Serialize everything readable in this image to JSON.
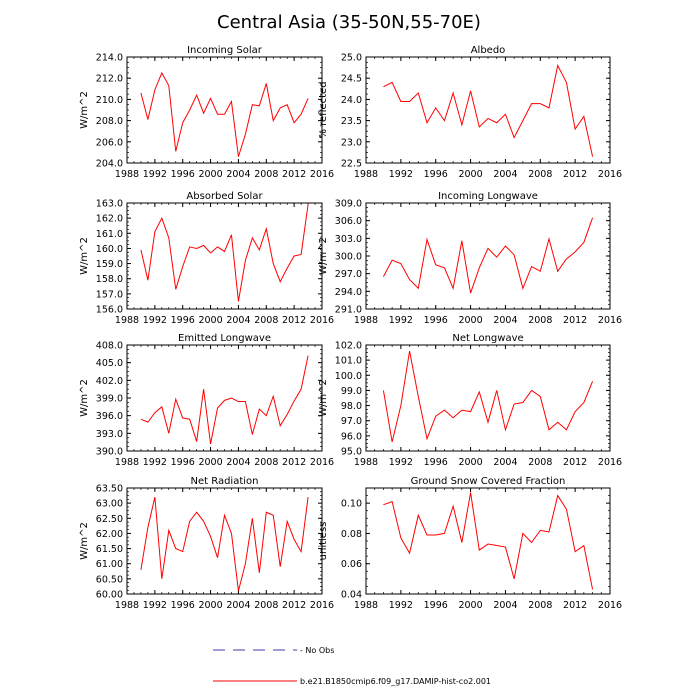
{
  "figure_title": "Central Asia (35-50N,55-70E)",
  "legend": {
    "obs_label": "- No Obs",
    "obs_color": "#3b3ba8",
    "model_label": "b.e21.B1850cmip6.f09_g17.DAMIP-hist-co2.001",
    "model_color": "#ff0000"
  },
  "chart_data": [
    {
      "type": "line",
      "title": "Incoming Solar",
      "ylabel": "W/m^2",
      "xlim": [
        1988,
        2016
      ],
      "xticks": [
        "1988",
        "1992",
        "1996",
        "2000",
        "2004",
        "2008",
        "2012",
        "2016"
      ],
      "ylim": [
        204.0,
        214.0
      ],
      "yticks": [
        "204.0",
        "206.0",
        "208.0",
        "210.0",
        "212.0",
        "214.0"
      ],
      "x": [
        1990,
        1991,
        1992,
        1993,
        1994,
        1995,
        1996,
        1997,
        1998,
        1999,
        2000,
        2001,
        2002,
        2003,
        2004,
        2005,
        2006,
        2007,
        2008,
        2009,
        2010,
        2011,
        2012,
        2013,
        2014
      ],
      "series": [
        {
          "values": [
            210.6,
            208.1,
            210.9,
            212.5,
            211.3,
            205.1,
            207.8,
            209.0,
            210.4,
            208.7,
            210.1,
            208.6,
            208.6,
            209.8,
            204.6,
            206.7,
            209.5,
            209.4,
            211.5,
            208.0,
            209.2,
            209.5,
            207.8,
            208.6,
            210.1
          ]
        }
      ]
    },
    {
      "type": "line",
      "title": "Albedo",
      "ylabel": "% reflected",
      "xlim": [
        1988,
        2016
      ],
      "xticks": [
        "1988",
        "1992",
        "1996",
        "2000",
        "2004",
        "2008",
        "2012",
        "2016"
      ],
      "ylim": [
        22.5,
        25.0
      ],
      "yticks": [
        "22.5",
        "23.0",
        "23.5",
        "24.0",
        "24.5",
        "25.0"
      ],
      "x": [
        1990,
        1991,
        1992,
        1993,
        1994,
        1995,
        1996,
        1997,
        1998,
        1999,
        2000,
        2001,
        2002,
        2003,
        2004,
        2005,
        2006,
        2007,
        2008,
        2009,
        2010,
        2011,
        2012,
        2013,
        2014
      ],
      "series": [
        {
          "values": [
            24.3,
            24.4,
            23.95,
            23.95,
            24.15,
            23.45,
            23.8,
            23.5,
            24.15,
            23.4,
            24.2,
            23.35,
            23.55,
            23.45,
            23.65,
            23.1,
            23.5,
            23.9,
            23.9,
            23.8,
            24.8,
            24.4,
            23.3,
            23.6,
            22.65
          ]
        }
      ]
    },
    {
      "type": "line",
      "title": "Absorbed Solar",
      "ylabel": "W/m^2",
      "xlim": [
        1988,
        2016
      ],
      "xticks": [
        "1988",
        "1992",
        "1996",
        "2000",
        "2004",
        "2008",
        "2012",
        "2016"
      ],
      "ylim": [
        156.0,
        163.0
      ],
      "yticks": [
        "156.0",
        "157.0",
        "158.0",
        "159.0",
        "160.0",
        "161.0",
        "162.0",
        "163.0"
      ],
      "x": [
        1990,
        1991,
        1992,
        1993,
        1994,
        1995,
        1996,
        1997,
        1998,
        1999,
        2000,
        2001,
        2002,
        2003,
        2004,
        2005,
        2006,
        2007,
        2008,
        2009,
        2010,
        2011,
        2012,
        2013,
        2014
      ],
      "series": [
        {
          "values": [
            159.9,
            157.9,
            161.1,
            162.0,
            160.7,
            157.3,
            158.8,
            160.1,
            160.0,
            160.2,
            159.7,
            160.1,
            159.8,
            160.9,
            156.5,
            159.2,
            160.7,
            159.9,
            161.3,
            159.0,
            157.8,
            158.7,
            159.5,
            159.6,
            162.9
          ]
        }
      ]
    },
    {
      "type": "line",
      "title": "Incoming Longwave",
      "ylabel": "W/m^2",
      "xlim": [
        1988,
        2016
      ],
      "xticks": [
        "1988",
        "1992",
        "1996",
        "2000",
        "2004",
        "2008",
        "2012",
        "2016"
      ],
      "ylim": [
        291.0,
        309.0
      ],
      "yticks": [
        "291.0",
        "294.0",
        "297.0",
        "300.0",
        "303.0",
        "306.0",
        "309.0"
      ],
      "x": [
        1990,
        1991,
        1992,
        1993,
        1994,
        1995,
        1996,
        1997,
        1998,
        1999,
        2000,
        2001,
        2002,
        2003,
        2004,
        2005,
        2006,
        2007,
        2008,
        2009,
        2010,
        2011,
        2012,
        2013,
        2014
      ],
      "series": [
        {
          "values": [
            296.5,
            299.3,
            298.7,
            296.0,
            294.5,
            302.8,
            298.5,
            298.0,
            294.5,
            302.6,
            293.7,
            298.0,
            301.3,
            299.8,
            301.7,
            300.2,
            294.5,
            298.2,
            297.4,
            302.9,
            297.4,
            299.5,
            300.7,
            302.3,
            306.5
          ]
        }
      ]
    },
    {
      "type": "line",
      "title": "Emitted Longwave",
      "ylabel": "W/m^2",
      "xlim": [
        1988,
        2016
      ],
      "xticks": [
        "1988",
        "1992",
        "1996",
        "2000",
        "2004",
        "2008",
        "2012",
        "2016"
      ],
      "ylim": [
        390.0,
        408.0
      ],
      "yticks": [
        "390.0",
        "393.0",
        "396.0",
        "399.0",
        "402.0",
        "405.0",
        "408.0"
      ],
      "x": [
        1990,
        1991,
        1992,
        1993,
        1994,
        1995,
        1996,
        1997,
        1998,
        1999,
        2000,
        2001,
        2002,
        2003,
        2004,
        2005,
        2006,
        2007,
        2008,
        2009,
        2010,
        2011,
        2012,
        2013,
        2014
      ],
      "series": [
        {
          "values": [
            395.4,
            394.9,
            396.5,
            397.5,
            393.0,
            398.8,
            395.6,
            395.4,
            391.6,
            400.5,
            391.2,
            397.3,
            398.6,
            399.0,
            398.4,
            398.4,
            392.8,
            397.1,
            396.0,
            399.3,
            394.3,
            396.2,
            398.5,
            400.5,
            406.2
          ]
        }
      ]
    },
    {
      "type": "line",
      "title": "Net Longwave",
      "ylabel": "W/m^2",
      "xlim": [
        1988,
        2016
      ],
      "xticks": [
        "1988",
        "1992",
        "1996",
        "2000",
        "2004",
        "2008",
        "2012",
        "2016"
      ],
      "ylim": [
        95.0,
        102.0
      ],
      "yticks": [
        "95.0",
        "96.0",
        "97.0",
        "98.0",
        "99.0",
        "100.0",
        "101.0",
        "102.0"
      ],
      "x": [
        1990,
        1991,
        1992,
        1993,
        1994,
        1995,
        1996,
        1997,
        1998,
        1999,
        2000,
        2001,
        2002,
        2003,
        2004,
        2005,
        2006,
        2007,
        2008,
        2009,
        2010,
        2011,
        2012,
        2013,
        2014
      ],
      "series": [
        {
          "values": [
            99.0,
            95.6,
            98.0,
            101.6,
            98.6,
            95.8,
            97.3,
            97.7,
            97.2,
            97.7,
            97.6,
            98.9,
            96.9,
            99.0,
            96.4,
            98.1,
            98.2,
            99.0,
            98.6,
            96.4,
            96.9,
            96.4,
            97.6,
            98.2,
            99.6
          ]
        }
      ]
    },
    {
      "type": "line",
      "title": "Net Radiation",
      "ylabel": "W/m^2",
      "xlim": [
        1988,
        2016
      ],
      "xticks": [
        "1988",
        "1992",
        "1996",
        "2000",
        "2004",
        "2008",
        "2012",
        "2016"
      ],
      "ylim": [
        60.0,
        63.5
      ],
      "yticks": [
        "60.00",
        "60.50",
        "61.00",
        "61.50",
        "62.00",
        "62.50",
        "63.00",
        "63.50"
      ],
      "x": [
        1990,
        1991,
        1992,
        1993,
        1994,
        1995,
        1996,
        1997,
        1998,
        1999,
        2000,
        2001,
        2002,
        2003,
        2004,
        2005,
        2006,
        2007,
        2008,
        2009,
        2010,
        2011,
        2012,
        2013,
        2014
      ],
      "series": [
        {
          "values": [
            60.8,
            62.2,
            63.2,
            60.5,
            62.1,
            61.5,
            61.4,
            62.4,
            62.7,
            62.4,
            61.9,
            61.2,
            62.6,
            62.0,
            60.1,
            61.0,
            62.5,
            60.7,
            62.7,
            62.6,
            60.9,
            62.4,
            61.8,
            61.4,
            63.2
          ]
        }
      ]
    },
    {
      "type": "line",
      "title": "Ground Snow Covered Fraction",
      "ylabel": "unitless",
      "xlim": [
        1988,
        2016
      ],
      "xticks": [
        "1988",
        "1992",
        "1996",
        "2000",
        "2004",
        "2008",
        "2012",
        "2016"
      ],
      "ylim": [
        0.04,
        0.11
      ],
      "yticks": [
        "0.04",
        "0.06",
        "0.08",
        "0.10"
      ],
      "x": [
        1990,
        1991,
        1992,
        1993,
        1994,
        1995,
        1996,
        1997,
        1998,
        1999,
        2000,
        2001,
        2002,
        2003,
        2004,
        2005,
        2006,
        2007,
        2008,
        2009,
        2010,
        2011,
        2012,
        2013,
        2014
      ],
      "series": [
        {
          "values": [
            0.099,
            0.101,
            0.077,
            0.067,
            0.092,
            0.079,
            0.079,
            0.08,
            0.098,
            0.074,
            0.107,
            0.069,
            0.073,
            0.072,
            0.071,
            0.05,
            0.08,
            0.074,
            0.082,
            0.081,
            0.105,
            0.096,
            0.068,
            0.072,
            0.043
          ]
        }
      ]
    }
  ]
}
